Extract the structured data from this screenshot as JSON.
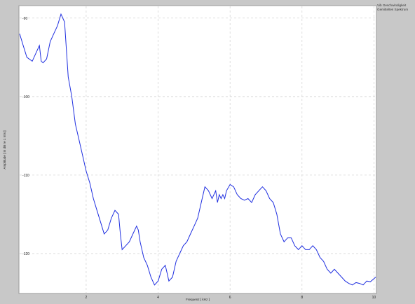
{
  "legend": {
    "line1": "Vib Geschwindigkeit",
    "line2": "Gemitteltes Spektrum"
  },
  "colors": {
    "background": "#c8c8c8",
    "plot_area": "#ffffff",
    "series": "#1f2fe0",
    "grid": "#cfcfcf"
  },
  "chart_data": {
    "type": "line",
    "title": "",
    "xlabel": "Frequenz [ kHz ]",
    "ylabel": "Amplitude [ in dB re 1 m/s ]",
    "xlim": [
      0.15,
      10.05
    ],
    "ylim": [
      -125,
      -88.5
    ],
    "xticks": [
      2,
      4,
      6,
      8,
      10
    ],
    "yticks": [
      -90,
      -100,
      -110,
      -120
    ],
    "grid": true,
    "series": [
      {
        "name": "",
        "x": [
          0.15,
          0.25,
          0.35,
          0.5,
          0.6,
          0.7,
          0.75,
          0.8,
          0.9,
          1.0,
          1.1,
          1.2,
          1.3,
          1.4,
          1.45,
          1.5,
          1.6,
          1.7,
          1.8,
          1.9,
          2.0,
          2.1,
          2.2,
          2.3,
          2.4,
          2.5,
          2.6,
          2.7,
          2.8,
          2.9,
          2.95,
          3.0,
          3.1,
          3.2,
          3.3,
          3.4,
          3.45,
          3.5,
          3.6,
          3.7,
          3.8,
          3.9,
          4.0,
          4.1,
          4.2,
          4.25,
          4.3,
          4.4,
          4.5,
          4.6,
          4.7,
          4.8,
          4.9,
          5.0,
          5.1,
          5.2,
          5.3,
          5.4,
          5.5,
          5.6,
          5.65,
          5.7,
          5.75,
          5.8,
          5.85,
          5.9,
          6.0,
          6.1,
          6.2,
          6.3,
          6.4,
          6.5,
          6.6,
          6.7,
          6.8,
          6.9,
          7.0,
          7.1,
          7.2,
          7.3,
          7.4,
          7.5,
          7.6,
          7.7,
          7.8,
          7.9,
          8.0,
          8.1,
          8.2,
          8.3,
          8.4,
          8.5,
          8.6,
          8.7,
          8.8,
          8.9,
          9.0,
          9.1,
          9.2,
          9.3,
          9.4,
          9.5,
          9.6,
          9.7,
          9.8,
          9.9,
          10.05
        ],
        "y": [
          -92.0,
          -93.5,
          -95.0,
          -95.5,
          -94.5,
          -93.5,
          -95.5,
          -95.7,
          -95.2,
          -93.0,
          -92.0,
          -91.0,
          -89.5,
          -90.5,
          -94.0,
          -97.5,
          -100.0,
          -103.5,
          -105.5,
          -107.5,
          -109.5,
          -111.0,
          -113.0,
          -114.5,
          -116.0,
          -117.5,
          -117.0,
          -115.5,
          -114.5,
          -115.0,
          -117.5,
          -119.5,
          -119.0,
          -118.5,
          -117.5,
          -116.5,
          -117.0,
          -118.5,
          -120.5,
          -121.5,
          -123.0,
          -124.0,
          -123.5,
          -122.0,
          -121.5,
          -122.5,
          -123.5,
          -123.0,
          -121.0,
          -120.0,
          -119.0,
          -118.5,
          -117.5,
          -116.5,
          -115.5,
          -113.5,
          -111.5,
          -112.0,
          -113.0,
          -112.0,
          -113.5,
          -112.5,
          -113.0,
          -112.5,
          -113.0,
          -112.0,
          -111.2,
          -111.5,
          -112.5,
          -113.0,
          -113.2,
          -113.0,
          -113.5,
          -112.5,
          -112.0,
          -111.5,
          -112.0,
          -113.0,
          -113.5,
          -115.0,
          -117.5,
          -118.5,
          -118.0,
          -118.0,
          -119.0,
          -119.5,
          -119.0,
          -119.5,
          -119.5,
          -119.0,
          -119.5,
          -120.5,
          -121.0,
          -122.0,
          -122.5,
          -122.0,
          -122.5,
          -123.0,
          -123.5,
          -123.8,
          -124.0,
          -123.7,
          -123.8,
          -124.0,
          -123.5,
          -123.6,
          -123.0
        ]
      }
    ]
  }
}
